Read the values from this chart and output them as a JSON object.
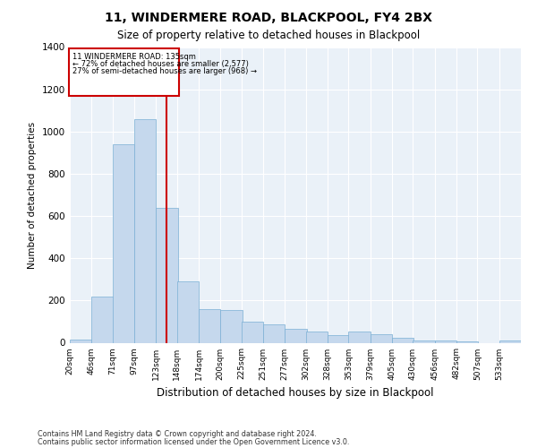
{
  "title": "11, WINDERMERE ROAD, BLACKPOOL, FY4 2BX",
  "subtitle": "Size of property relative to detached houses in Blackpool",
  "xlabel": "Distribution of detached houses by size in Blackpool",
  "ylabel": "Number of detached properties",
  "footer_line1": "Contains HM Land Registry data © Crown copyright and database right 2024.",
  "footer_line2": "Contains public sector information licensed under the Open Government Licence v3.0.",
  "bar_color": "#c5d8ed",
  "bar_edge_color": "#7aafd4",
  "background_color": "#eaf1f8",
  "grid_color": "#ffffff",
  "annotation_box_color": "#cc0000",
  "property_line_color": "#cc0000",
  "property_sqm": 135,
  "annotation_text_line1": "11 WINDERMERE ROAD: 135sqm",
  "annotation_text_line2": "← 72% of detached houses are smaller (2,577)",
  "annotation_text_line3": "27% of semi-detached houses are larger (968) →",
  "bin_labels": [
    "20sqm",
    "46sqm",
    "71sqm",
    "97sqm",
    "123sqm",
    "148sqm",
    "174sqm",
    "200sqm",
    "225sqm",
    "251sqm",
    "277sqm",
    "302sqm",
    "328sqm",
    "353sqm",
    "379sqm",
    "405sqm",
    "430sqm",
    "456sqm",
    "482sqm",
    "507sqm",
    "533sqm"
  ],
  "bin_edges": [
    20,
    46,
    71,
    97,
    123,
    148,
    174,
    200,
    225,
    251,
    277,
    302,
    328,
    353,
    379,
    405,
    430,
    456,
    482,
    507,
    533
  ],
  "bar_heights": [
    15,
    220,
    940,
    1060,
    640,
    290,
    160,
    155,
    100,
    85,
    65,
    55,
    35,
    55,
    40,
    25,
    10,
    10,
    5,
    0,
    10
  ],
  "ylim": [
    0,
    1400
  ],
  "yticks": [
    0,
    200,
    400,
    600,
    800,
    1000,
    1200,
    1400
  ]
}
